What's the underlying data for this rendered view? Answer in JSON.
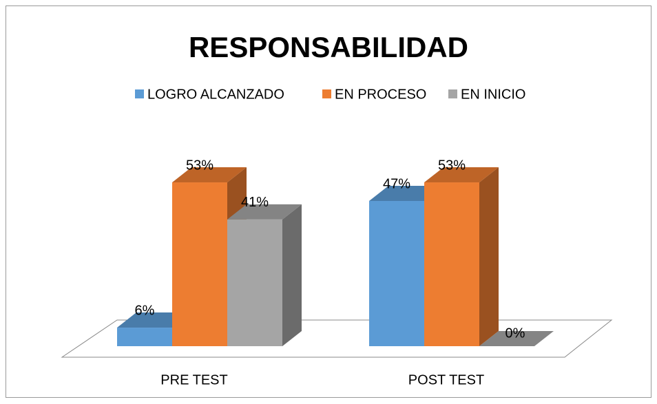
{
  "chart_data": {
    "type": "bar3d",
    "title": "RESPONSABILIDAD",
    "categories": [
      "PRE TEST",
      "POST TEST"
    ],
    "series": [
      {
        "name": "LOGRO ALCANZADO",
        "color": "#5b9bd5",
        "values": [
          6,
          47
        ],
        "value_labels": [
          "6%",
          "47%"
        ]
      },
      {
        "name": "EN PROCESO",
        "color": "#ed7d31",
        "values": [
          53,
          53
        ],
        "value_labels": [
          "53%",
          "53%"
        ]
      },
      {
        "name": "EN INICIO",
        "color": "#a5a5a5",
        "values": [
          41,
          0
        ],
        "value_labels": [
          "41%",
          "0%"
        ]
      }
    ],
    "legend": "top"
  }
}
